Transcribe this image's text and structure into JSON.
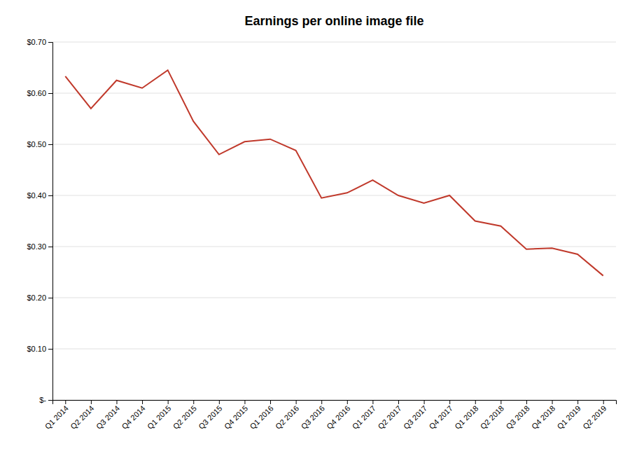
{
  "chart_data": {
    "type": "line",
    "title": "Earnings per online image file",
    "categories": [
      "Q1 2014",
      "Q2 2014",
      "Q3 2014",
      "Q4 2014",
      "Q1 2015",
      "Q2 2015",
      "Q3 2015",
      "Q4 2015",
      "Q1 2016",
      "Q2 2016",
      "Q3 2016",
      "Q4 2016",
      "Q1 2017",
      "Q2 2017",
      "Q3 2017",
      "Q4 2017",
      "Q1 2018",
      "Q2 2018",
      "Q3 2018",
      "Q4 2018",
      "Q1 2019",
      "Q2 2019"
    ],
    "values": [
      0.633,
      0.57,
      0.625,
      0.61,
      0.645,
      0.545,
      0.48,
      0.505,
      0.51,
      0.488,
      0.395,
      0.405,
      0.43,
      0.4,
      0.385,
      0.4,
      0.35,
      0.34,
      0.295,
      0.297,
      0.285,
      0.243
    ],
    "color": "#c0392b",
    "ylim": [
      0,
      0.7
    ],
    "yticks": [
      {
        "value": 0,
        "label": "$-"
      },
      {
        "value": 0.1,
        "label": "$0.10"
      },
      {
        "value": 0.2,
        "label": "$0.20"
      },
      {
        "value": 0.3,
        "label": "$0.30"
      },
      {
        "value": 0.4,
        "label": "$0.40"
      },
      {
        "value": 0.5,
        "label": "$0.50"
      },
      {
        "value": 0.6,
        "label": "$0.60"
      },
      {
        "value": 0.7,
        "label": "$0.70"
      }
    ],
    "grid": true
  }
}
